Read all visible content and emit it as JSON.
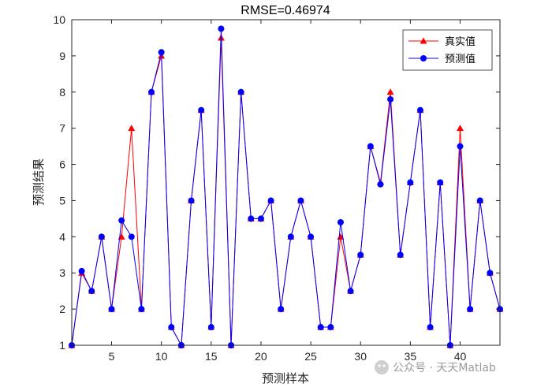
{
  "chart_data": {
    "type": "line",
    "title": "RMSE=0.46974",
    "xlabel": "预测样本",
    "ylabel": "预测结果",
    "xlim": [
      1,
      44
    ],
    "ylim": [
      1,
      10
    ],
    "xticks": [
      5,
      10,
      15,
      20,
      25,
      30,
      35,
      40
    ],
    "yticks": [
      1,
      2,
      3,
      4,
      5,
      6,
      7,
      8,
      9,
      10
    ],
    "grid": false,
    "legend_position": "top-right",
    "x": [
      1,
      2,
      3,
      4,
      5,
      6,
      7,
      8,
      9,
      10,
      11,
      12,
      13,
      14,
      15,
      16,
      17,
      18,
      19,
      20,
      21,
      22,
      23,
      24,
      25,
      26,
      27,
      28,
      29,
      30,
      31,
      32,
      33,
      34,
      35,
      36,
      37,
      38,
      39,
      40,
      41,
      42,
      43,
      44
    ],
    "series": [
      {
        "name": "真实值",
        "color": "#ff0000",
        "marker": "triangle",
        "values": [
          1,
          3,
          2.5,
          4,
          2,
          4,
          7,
          2,
          8,
          9,
          1.5,
          1,
          5,
          7.5,
          1.5,
          9.5,
          1,
          8,
          4.5,
          4.5,
          5,
          2,
          4,
          5,
          4,
          1.5,
          1.5,
          4,
          2.5,
          3.5,
          6.5,
          5.5,
          8,
          3.5,
          5.5,
          7.5,
          1.5,
          5.5,
          1,
          7,
          2,
          5,
          3,
          2
        ]
      },
      {
        "name": "预测值",
        "color": "#0000ff",
        "marker": "circle",
        "values": [
          1,
          3.05,
          2.5,
          4,
          2,
          4.45,
          4,
          2,
          8,
          9.1,
          1.5,
          1,
          5,
          7.5,
          1.5,
          9.75,
          1,
          8,
          4.5,
          4.5,
          5,
          2,
          4,
          5,
          4,
          1.5,
          1.5,
          4.4,
          2.5,
          3.5,
          6.5,
          5.45,
          7.8,
          3.5,
          5.5,
          7.5,
          1.5,
          5.5,
          1,
          6.5,
          2,
          5,
          3,
          2
        ]
      }
    ]
  },
  "watermark": {
    "text": "公众号 · 天天Matlab"
  }
}
